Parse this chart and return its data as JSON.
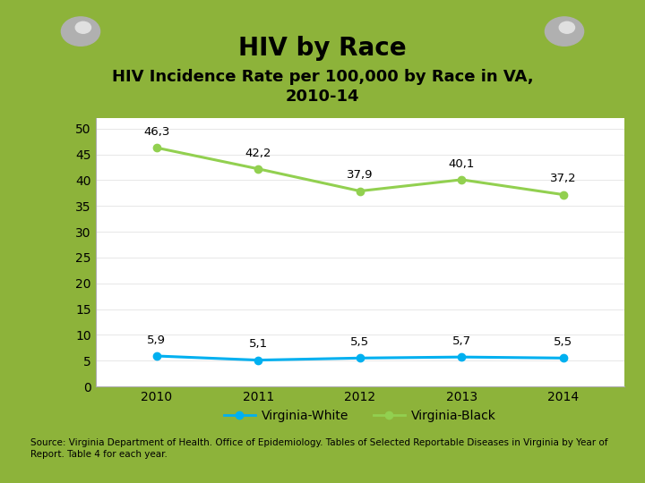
{
  "title": "HIV by Race",
  "subtitle": "HIV Incidence Rate per 100,000 by Race in VA,\n2010-14",
  "years": [
    2010,
    2011,
    2012,
    2013,
    2014
  ],
  "virginia_white": [
    5.9,
    5.1,
    5.5,
    5.7,
    5.5
  ],
  "virginia_black": [
    46.3,
    42.2,
    37.9,
    40.1,
    37.2
  ],
  "white_labels": [
    "5,9",
    "5,1",
    "5,5",
    "5,7",
    "5,5"
  ],
  "black_labels": [
    "46,3",
    "42,2",
    "37,9",
    "40,1",
    "37,2"
  ],
  "white_color": "#00B0F0",
  "black_color": "#92D050",
  "ylim": [
    0,
    52
  ],
  "yticks": [
    0,
    5,
    10,
    15,
    20,
    25,
    30,
    35,
    40,
    45,
    50
  ],
  "bg_outer": "#8DB33A",
  "bg_paper": "#FFFFFF",
  "source_text": "Source: Virginia Department of Health. Office of Epidemiology. Tables of Selected Reportable Diseases in Virginia by Year of\nReport. Table 4 for each year.",
  "title_fontsize": 20,
  "subtitle_fontsize": 13,
  "label_fontsize": 9.5,
  "axis_fontsize": 10,
  "legend_fontsize": 10,
  "source_fontsize": 7.5,
  "pin_color": "#B0B0B0",
  "pin_inner_color": "#E0E0E0"
}
